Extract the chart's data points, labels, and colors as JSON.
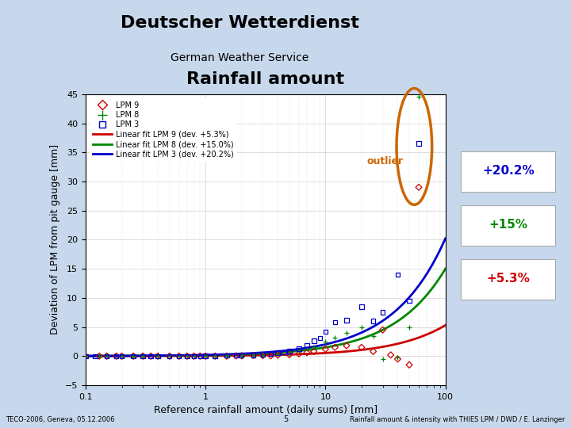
{
  "title": "Rainfall amount",
  "header_title": "Deutscher Wetterdienst",
  "header_subtitle": "German Weather Service",
  "xlabel": "Reference rainfall amount (daily sums) [mm]",
  "ylabel": "Deviation of LPM from pit gauge [mm]",
  "xlim": [
    0.1,
    100
  ],
  "ylim": [
    -5,
    45
  ],
  "yticks": [
    -5,
    0,
    5,
    10,
    15,
    20,
    25,
    30,
    35,
    40,
    45
  ],
  "background_color": "#c8d8ec",
  "plot_bg_color": "#ffffff",
  "lpm9_color": "#cc0000",
  "lpm8_color": "#008800",
  "lpm3_color": "#0000cc",
  "outlier_color": "#cc6600",
  "pct_labels": [
    "+20.2%",
    "+15%",
    "+5.3%"
  ],
  "pct_colors": [
    "#0000cc",
    "#008800",
    "#cc0000"
  ],
  "lpm9_scatter_x": [
    0.1,
    0.13,
    0.15,
    0.18,
    0.2,
    0.25,
    0.3,
    0.35,
    0.4,
    0.5,
    0.6,
    0.7,
    0.8,
    0.9,
    1.0,
    1.2,
    1.5,
    1.8,
    2.0,
    2.5,
    3.0,
    3.5,
    4.0,
    5.0,
    6.0,
    7.0,
    8.0,
    10.0,
    12.0,
    15.0,
    20.0,
    25.0,
    30.0,
    35.0,
    40.0,
    50.0,
    60.0
  ],
  "lpm9_scatter_y": [
    0.0,
    0.0,
    0.0,
    0.0,
    0.0,
    0.0,
    0.0,
    0.0,
    0.0,
    0.0,
    0.0,
    0.0,
    0.0,
    0.0,
    0.0,
    0.0,
    0.0,
    0.05,
    0.05,
    0.1,
    0.1,
    0.05,
    0.15,
    0.25,
    0.4,
    0.6,
    0.8,
    1.2,
    1.5,
    1.8,
    1.5,
    0.8,
    4.5,
    0.2,
    -0.5,
    -1.5,
    29.0
  ],
  "lpm8_scatter_x": [
    0.1,
    0.13,
    0.15,
    0.2,
    0.25,
    0.3,
    0.4,
    0.5,
    0.6,
    0.7,
    0.8,
    1.0,
    1.2,
    1.5,
    2.0,
    2.5,
    3.0,
    4.0,
    5.0,
    6.0,
    7.0,
    8.0,
    10.0,
    12.0,
    15.0,
    20.0,
    25.0,
    30.0,
    40.0,
    50.0,
    60.0
  ],
  "lpm8_scatter_y": [
    0.0,
    0.0,
    0.0,
    0.0,
    0.0,
    0.0,
    0.0,
    0.0,
    0.0,
    0.0,
    0.0,
    0.0,
    0.0,
    0.05,
    0.1,
    0.15,
    0.2,
    0.35,
    0.5,
    0.8,
    1.2,
    1.6,
    2.5,
    3.2,
    4.0,
    5.0,
    3.5,
    -0.5,
    -0.2,
    5.0,
    44.5
  ],
  "lpm3_scatter_x": [
    0.1,
    0.12,
    0.15,
    0.18,
    0.2,
    0.25,
    0.3,
    0.35,
    0.4,
    0.5,
    0.6,
    0.7,
    0.8,
    0.9,
    1.0,
    1.2,
    1.5,
    1.8,
    2.0,
    2.5,
    3.0,
    3.5,
    4.0,
    4.5,
    5.0,
    6.0,
    7.0,
    8.0,
    9.0,
    10.0,
    12.0,
    15.0,
    20.0,
    25.0,
    30.0,
    40.0,
    50.0,
    60.0
  ],
  "lpm3_scatter_y": [
    0.0,
    0.0,
    0.0,
    0.0,
    0.0,
    0.0,
    0.0,
    0.0,
    0.0,
    0.0,
    0.0,
    0.0,
    0.0,
    0.0,
    0.05,
    0.05,
    0.1,
    0.1,
    0.15,
    0.2,
    0.3,
    0.4,
    0.55,
    0.65,
    0.85,
    1.3,
    1.9,
    2.6,
    3.1,
    4.2,
    5.8,
    6.2,
    8.5,
    6.0,
    7.5,
    14.0,
    9.5,
    36.5
  ],
  "footer_left": "TECO-2006, Geneva, 05.12.2006",
  "footer_center": "5",
  "footer_right": "Rainfall amount & intensity with THIES LPM / DWD / E. Lanzinger"
}
